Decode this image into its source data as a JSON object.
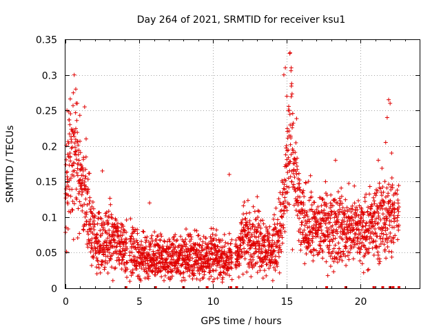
{
  "chart_data": {
    "type": "scatter",
    "title": "Day 264 of 2021, SRMTID for receiver ksu1",
    "xlabel": "GPS time / hours",
    "ylabel": "SRMTID / TECUs",
    "xlim": [
      0,
      24
    ],
    "ylim": [
      0,
      0.35
    ],
    "grid": true,
    "marker": "+",
    "series_color": "#e00000",
    "x_ticks": [
      0,
      5,
      10,
      15,
      20
    ],
    "x_tick_labels": [
      "0",
      "5",
      "10",
      "15",
      "20"
    ],
    "y_ticks": [
      0,
      0.05,
      0.1,
      0.15,
      0.2,
      0.25,
      0.3,
      0.35
    ],
    "y_tick_labels": [
      "0",
      "0.05",
      "0.1",
      "0.15",
      "0.2",
      "0.25",
      "0.3",
      "0.35"
    ],
    "trend": {
      "x": [
        0.0,
        0.3,
        0.6,
        1.0,
        1.4,
        2.0,
        2.5,
        3.0,
        3.5,
        4.0,
        5.0,
        6.0,
        7.0,
        8.0,
        9.0,
        10.0,
        11.0,
        11.5,
        12.0,
        12.5,
        13.0,
        13.5,
        14.0,
        14.5,
        14.8,
        15.0,
        15.3,
        15.6,
        16.0,
        16.5,
        17.0,
        17.5,
        18.0,
        18.5,
        19.0,
        19.5,
        20.0,
        20.5,
        21.0,
        21.5,
        22.0,
        22.3,
        22.6
      ],
      "y": [
        0.12,
        0.18,
        0.2,
        0.15,
        0.12,
        0.07,
        0.06,
        0.07,
        0.065,
        0.06,
        0.045,
        0.045,
        0.04,
        0.045,
        0.045,
        0.045,
        0.04,
        0.04,
        0.07,
        0.075,
        0.07,
        0.06,
        0.05,
        0.08,
        0.11,
        0.17,
        0.2,
        0.15,
        0.09,
        0.09,
        0.08,
        0.09,
        0.085,
        0.09,
        0.08,
        0.085,
        0.08,
        0.085,
        0.09,
        0.1,
        0.1,
        0.1,
        0.1
      ]
    },
    "highlights": [
      {
        "x": 0.1,
        "y": 0.25
      },
      {
        "x": 0.3,
        "y": 0.23
      },
      {
        "x": 0.5,
        "y": 0.22
      },
      {
        "x": 0.7,
        "y": 0.28
      },
      {
        "x": 0.8,
        "y": 0.26
      },
      {
        "x": 1.3,
        "y": 0.255
      },
      {
        "x": 1.4,
        "y": 0.21
      },
      {
        "x": 2.5,
        "y": 0.165
      },
      {
        "x": 5.7,
        "y": 0.12
      },
      {
        "x": 11.1,
        "y": 0.16
      },
      {
        "x": 14.8,
        "y": 0.3
      },
      {
        "x": 14.9,
        "y": 0.31
      },
      {
        "x": 15.0,
        "y": 0.27
      },
      {
        "x": 15.2,
        "y": 0.33
      },
      {
        "x": 15.3,
        "y": 0.31
      },
      {
        "x": 15.1,
        "y": 0.25
      },
      {
        "x": 18.3,
        "y": 0.18
      },
      {
        "x": 21.2,
        "y": 0.18
      },
      {
        "x": 21.7,
        "y": 0.205
      },
      {
        "x": 21.8,
        "y": 0.24
      },
      {
        "x": 21.9,
        "y": 0.265
      },
      {
        "x": 22.0,
        "y": 0.26
      },
      {
        "x": 22.1,
        "y": 0.19
      },
      {
        "x": 22.3,
        "y": 0.12
      }
    ],
    "axis_flags_x": [
      4.1,
      6.1,
      8.0,
      9.6,
      11.2,
      11.6,
      17.7,
      19.0,
      20.9,
      21.5,
      22.0,
      22.2,
      22.6
    ]
  }
}
